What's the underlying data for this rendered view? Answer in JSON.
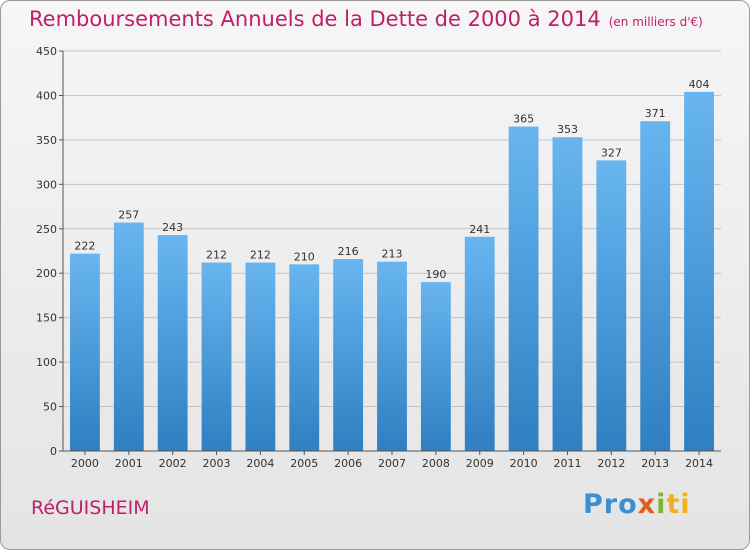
{
  "header": {
    "title": "Remboursements Annuels de la Dette de 2000 à 2014",
    "subtitle": "(en milliers d'€)"
  },
  "footer": {
    "city": "RéGUISHEIM",
    "logo": [
      "Pro",
      "x",
      "i",
      "ti"
    ]
  },
  "colors": {
    "title": "#c01e6a",
    "bar_top": "#68b5f0",
    "bar_bottom": "#2f7fc1"
  },
  "chart_data": {
    "type": "bar",
    "title": "Remboursements Annuels de la Dette de 2000 à 2014",
    "subtitle": "(en milliers d'€)",
    "xlabel": "",
    "ylabel": "",
    "categories": [
      "2000",
      "2001",
      "2002",
      "2003",
      "2004",
      "2005",
      "2006",
      "2007",
      "2008",
      "2009",
      "2010",
      "2011",
      "2012",
      "2013",
      "2014"
    ],
    "values": [
      222,
      257,
      243,
      212,
      212,
      210,
      216,
      213,
      190,
      241,
      365,
      353,
      327,
      371,
      404
    ],
    "ylim": [
      0,
      450
    ],
    "yticks": [
      0,
      50,
      100,
      150,
      200,
      250,
      300,
      350,
      400,
      450
    ],
    "grid": true
  }
}
